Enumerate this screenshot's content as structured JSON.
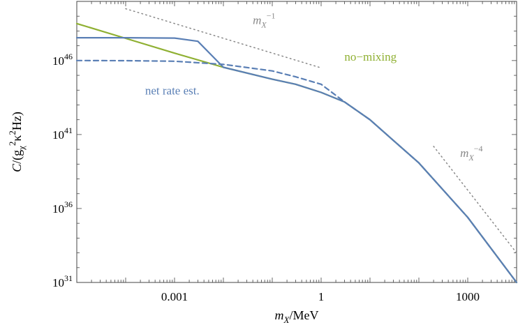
{
  "chart_data": {
    "type": "line",
    "xscale": "log",
    "yscale": "log",
    "xlim": [
      1e-05,
      10000
    ],
    "ylim": [
      1e+31,
      1e+50
    ],
    "xlabel": {
      "base": "m",
      "sub": "X",
      "after": "/MeV"
    },
    "ylabel": {
      "pre": "C/(g",
      "sub": "χ",
      "sup": "2",
      "mid": "κ",
      "sup2": "2",
      "post": "Hz)"
    },
    "x_ticks": [
      {
        "value": 0.001,
        "label": "0.001"
      },
      {
        "value": 1,
        "label": "1"
      },
      {
        "value": 1000,
        "label": "1000"
      }
    ],
    "y_ticks": [
      {
        "value": 1e+31,
        "base": "10",
        "exp": "31"
      },
      {
        "value": 1e+36,
        "base": "10",
        "exp": "36"
      },
      {
        "value": 1e+41,
        "base": "10",
        "exp": "41"
      },
      {
        "value": 1e+46,
        "base": "10",
        "exp": "46"
      }
    ],
    "series": [
      {
        "name": "no−mixing",
        "color": "#8fb032",
        "style": "solid",
        "points": [
          [
            1e-05,
            3.16e+48
          ],
          [
            0.0001,
            3.16e+47
          ],
          [
            0.001,
            3.16e+46
          ],
          [
            0.01,
            3.5e+45
          ],
          [
            0.1,
            5.5e+44
          ],
          [
            0.3,
            2.5e+44
          ],
          [
            1,
            7e+43
          ],
          [
            3,
            1.6e+43
          ],
          [
            10,
            1e+42
          ],
          [
            30,
            4e+40
          ],
          [
            100,
            1.2e+39
          ],
          [
            1000,
            2.5e+35
          ],
          [
            10000,
            1e+31
          ]
        ]
      },
      {
        "name": "",
        "color": "#5a7fb5",
        "style": "solid",
        "points": [
          [
            1e-05,
            3.5e+47
          ],
          [
            0.0001,
            3.5e+47
          ],
          [
            0.001,
            3.3e+47
          ],
          [
            0.003,
            2e+47
          ],
          [
            0.01,
            3.5e+45
          ],
          [
            0.1,
            5.5e+44
          ],
          [
            0.3,
            2.5e+44
          ],
          [
            1,
            7e+43
          ],
          [
            3,
            1.6e+43
          ],
          [
            10,
            1e+42
          ],
          [
            30,
            4e+40
          ],
          [
            100,
            1.2e+39
          ],
          [
            1000,
            2.5e+35
          ],
          [
            10000,
            1e+31
          ]
        ]
      },
      {
        "name": "net rate est.",
        "color": "#5a7fb5",
        "style": "dashed",
        "points": [
          [
            1e-05,
            1e+46
          ],
          [
            0.0001,
            9.8e+45
          ],
          [
            0.001,
            9e+45
          ],
          [
            0.01,
            5.5e+45
          ],
          [
            0.1,
            2e+45
          ],
          [
            0.3,
            8e+44
          ],
          [
            1,
            2.5e+44
          ],
          [
            3,
            1.6e+43
          ],
          [
            10,
            1e+42
          ],
          [
            30,
            4e+40
          ],
          [
            100,
            1.2e+39
          ],
          [
            1000,
            2.5e+35
          ],
          [
            10000,
            1e+31
          ]
        ]
      },
      {
        "name": "",
        "color": "#888888",
        "style": "dotted",
        "points": [
          [
            0.0001,
            3.2e+49
          ],
          [
            1,
            3.2e+45
          ]
        ]
      },
      {
        "name": "",
        "color": "#888888",
        "style": "dotted",
        "points": [
          [
            200,
            1.6e+40
          ],
          [
            10000,
            1e+33
          ]
        ]
      }
    ],
    "annotations": [
      {
        "kind": "power",
        "base": "m",
        "sub": "X",
        "sup": "−1",
        "color": "#8a8a8a",
        "at": [
          0.04,
          3e+48
        ]
      },
      {
        "kind": "power",
        "base": "m",
        "sub": "X",
        "sup": "−4",
        "color": "#8a8a8a",
        "at": [
          700,
          3e+39
        ]
      },
      {
        "kind": "text",
        "text": "no−mixing",
        "color": "#8fb032",
        "at": [
          3,
          1e+46
        ]
      },
      {
        "kind": "text",
        "text": "net rate est.",
        "color": "#5a7fb5",
        "at": [
          0.00025,
          5e+43
        ]
      }
    ],
    "grid": false,
    "legend": "none"
  }
}
